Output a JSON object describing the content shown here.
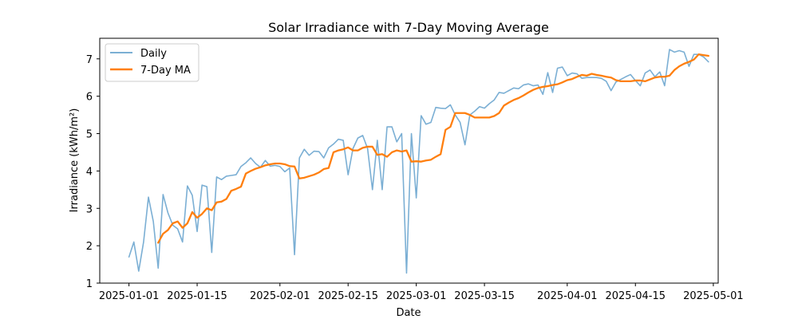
{
  "chart_data": {
    "type": "line",
    "title": "Solar Irradiance with 7-Day Moving Average",
    "xlabel": "Date",
    "ylabel": "Irradiance (kWh/m²)",
    "xlim": [
      "2024-12-26",
      "2025-05-02"
    ],
    "ylim": [
      1.0,
      7.55
    ],
    "x_ticks": [
      "2025-01-01",
      "2025-01-15",
      "2025-02-01",
      "2025-02-15",
      "2025-03-01",
      "2025-03-15",
      "2025-04-01",
      "2025-04-15",
      "2025-05-01"
    ],
    "y_ticks": [
      1,
      2,
      3,
      4,
      5,
      6,
      7
    ],
    "grid": false,
    "legend_position": "upper left",
    "x": [
      "2025-01-01",
      "2025-01-02",
      "2025-01-03",
      "2025-01-04",
      "2025-01-05",
      "2025-01-06",
      "2025-01-07",
      "2025-01-08",
      "2025-01-09",
      "2025-01-10",
      "2025-01-11",
      "2025-01-12",
      "2025-01-13",
      "2025-01-14",
      "2025-01-15",
      "2025-01-16",
      "2025-01-17",
      "2025-01-18",
      "2025-01-19",
      "2025-01-20",
      "2025-01-21",
      "2025-01-22",
      "2025-01-23",
      "2025-01-24",
      "2025-01-25",
      "2025-01-26",
      "2025-01-27",
      "2025-01-28",
      "2025-01-29",
      "2025-01-30",
      "2025-01-31",
      "2025-02-01",
      "2025-02-02",
      "2025-02-03",
      "2025-02-04",
      "2025-02-05",
      "2025-02-06",
      "2025-02-07",
      "2025-02-08",
      "2025-02-09",
      "2025-02-10",
      "2025-02-11",
      "2025-02-12",
      "2025-02-13",
      "2025-02-14",
      "2025-02-15",
      "2025-02-16",
      "2025-02-17",
      "2025-02-18",
      "2025-02-19",
      "2025-02-20",
      "2025-02-21",
      "2025-02-22",
      "2025-02-23",
      "2025-02-24",
      "2025-02-25",
      "2025-02-26",
      "2025-02-27",
      "2025-02-28",
      "2025-03-01",
      "2025-03-02",
      "2025-03-03",
      "2025-03-04",
      "2025-03-05",
      "2025-03-06",
      "2025-03-07",
      "2025-03-08",
      "2025-03-09",
      "2025-03-10",
      "2025-03-11",
      "2025-03-12",
      "2025-03-13",
      "2025-03-14",
      "2025-03-15",
      "2025-03-16",
      "2025-03-17",
      "2025-03-18",
      "2025-03-19",
      "2025-03-20",
      "2025-03-21",
      "2025-03-22",
      "2025-03-23",
      "2025-03-24",
      "2025-03-25",
      "2025-03-26",
      "2025-03-27",
      "2025-03-28",
      "2025-03-29",
      "2025-03-30",
      "2025-03-31",
      "2025-04-01",
      "2025-04-02",
      "2025-04-03",
      "2025-04-04",
      "2025-04-05",
      "2025-04-06",
      "2025-04-07",
      "2025-04-08",
      "2025-04-09",
      "2025-04-10",
      "2025-04-11",
      "2025-04-12",
      "2025-04-13",
      "2025-04-14",
      "2025-04-15",
      "2025-04-16",
      "2025-04-17",
      "2025-04-18",
      "2025-04-19",
      "2025-04-20",
      "2025-04-21",
      "2025-04-22",
      "2025-04-23",
      "2025-04-24",
      "2025-04-25",
      "2025-04-26",
      "2025-04-27",
      "2025-04-28",
      "2025-04-29",
      "2025-04-30"
    ],
    "series": [
      {
        "name": "Daily",
        "color": "#7bafd4",
        "values": [
          1.7,
          2.1,
          1.32,
          2.1,
          3.3,
          2.65,
          1.4,
          3.37,
          2.88,
          2.55,
          2.45,
          2.1,
          3.6,
          3.35,
          2.38,
          3.62,
          3.58,
          1.82,
          3.84,
          3.77,
          3.86,
          3.88,
          3.9,
          4.12,
          4.22,
          4.35,
          4.2,
          4.1,
          4.28,
          4.13,
          4.15,
          4.12,
          3.98,
          4.08,
          1.76,
          4.35,
          4.58,
          4.42,
          4.53,
          4.52,
          4.35,
          4.62,
          4.72,
          4.85,
          4.82,
          3.9,
          4.6,
          4.88,
          4.95,
          4.6,
          3.5,
          4.82,
          3.5,
          5.18,
          5.18,
          4.78,
          5.0,
          1.27,
          5.0,
          3.28,
          5.48,
          5.25,
          5.3,
          5.7,
          5.68,
          5.67,
          5.77,
          5.5,
          5.3,
          4.7,
          5.5,
          5.6,
          5.72,
          5.68,
          5.8,
          5.9,
          6.1,
          6.08,
          6.15,
          6.22,
          6.2,
          6.3,
          6.33,
          6.28,
          6.3,
          6.05,
          6.63,
          6.1,
          6.75,
          6.78,
          6.55,
          6.62,
          6.6,
          6.48,
          6.5,
          6.5,
          6.5,
          6.48,
          6.4,
          6.15,
          6.38,
          6.45,
          6.52,
          6.58,
          6.42,
          6.28,
          6.62,
          6.7,
          6.52,
          6.65,
          6.28,
          7.25,
          7.18,
          7.22,
          7.18,
          6.8,
          7.12,
          7.12,
          7.05,
          6.92
        ]
      },
      {
        "name": "7-Day MA",
        "color": "#ff7f0e",
        "values": [
          null,
          null,
          null,
          null,
          null,
          null,
          2.08,
          2.32,
          2.42,
          2.6,
          2.65,
          2.48,
          2.6,
          2.9,
          2.75,
          2.85,
          3.0,
          2.95,
          3.16,
          3.18,
          3.25,
          3.47,
          3.52,
          3.58,
          3.93,
          4.0,
          4.06,
          4.1,
          4.15,
          4.18,
          4.2,
          4.2,
          4.18,
          4.13,
          4.12,
          3.8,
          3.82,
          3.86,
          3.9,
          3.96,
          4.05,
          4.08,
          4.5,
          4.55,
          4.58,
          4.63,
          4.55,
          4.55,
          4.62,
          4.65,
          4.65,
          4.43,
          4.45,
          4.38,
          4.5,
          4.55,
          4.52,
          4.55,
          4.25,
          4.26,
          4.25,
          4.28,
          4.3,
          4.38,
          4.45,
          5.1,
          5.18,
          5.55,
          5.55,
          5.55,
          5.5,
          5.43,
          5.43,
          5.43,
          5.43,
          5.47,
          5.55,
          5.75,
          5.83,
          5.9,
          5.95,
          6.02,
          6.1,
          6.17,
          6.22,
          6.25,
          6.27,
          6.3,
          6.32,
          6.37,
          6.43,
          6.46,
          6.52,
          6.57,
          6.55,
          6.6,
          6.57,
          6.55,
          6.52,
          6.5,
          6.43,
          6.4,
          6.4,
          6.4,
          6.42,
          6.42,
          6.4,
          6.45,
          6.5,
          6.52,
          6.52,
          6.55,
          6.7,
          6.8,
          6.87,
          6.92,
          6.98,
          7.12,
          7.1,
          7.08
        ]
      }
    ]
  }
}
